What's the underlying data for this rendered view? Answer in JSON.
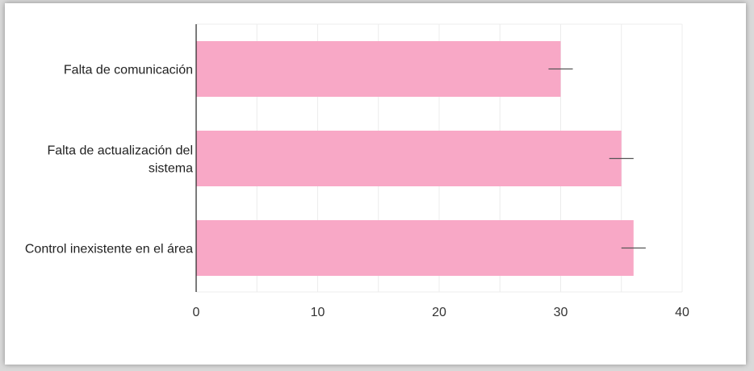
{
  "chart_data": {
    "type": "bar",
    "orientation": "horizontal",
    "categories": [
      [
        "Falta de comunicación"
      ],
      [
        "Falta de actualización del",
        "sistema"
      ],
      [
        "Control inexistente en el área"
      ]
    ],
    "values": [
      30,
      35,
      36
    ],
    "error_bars": [
      1,
      1,
      1
    ],
    "xlim": [
      0,
      40
    ],
    "xticks": [
      0,
      10,
      20,
      30,
      40
    ],
    "grid": true,
    "colors": {
      "bar": "#f8a8c6",
      "error_bar": "#555555",
      "grid": "#ececec",
      "axis": "#222222"
    }
  }
}
